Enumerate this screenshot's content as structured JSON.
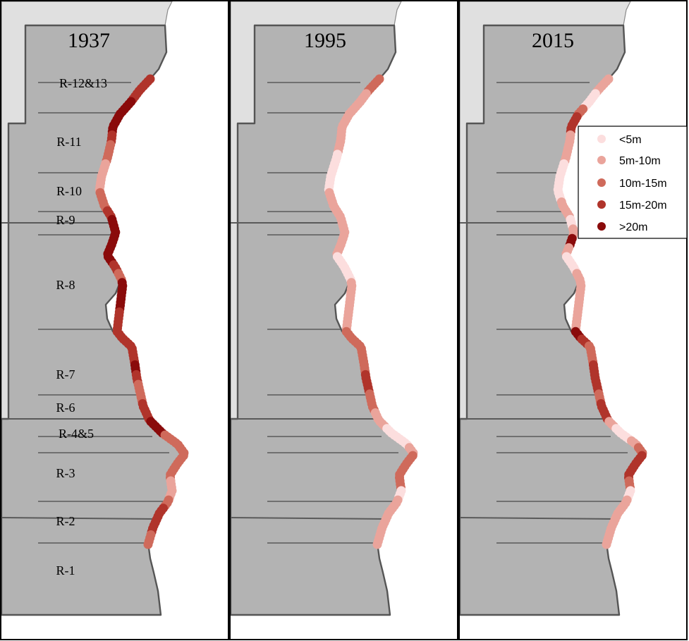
{
  "panels": [
    {
      "year": "1937",
      "profile": [
        3,
        3,
        3,
        4,
        4,
        4,
        4,
        3,
        2,
        2,
        1,
        1,
        1,
        2,
        2,
        3,
        4,
        4,
        4,
        4,
        4,
        3,
        2,
        4,
        4,
        4,
        3,
        3,
        3,
        3,
        3,
        3,
        4,
        3,
        2,
        2,
        3,
        3,
        4,
        4,
        2,
        2,
        2,
        2,
        2,
        2,
        1,
        1,
        2,
        3,
        3,
        3,
        2
      ]
    },
    {
      "year": "1995",
      "profile": [
        2,
        2,
        1,
        1,
        1,
        1,
        1,
        1,
        1,
        0,
        0,
        0,
        0,
        1,
        1,
        1,
        1,
        1,
        1,
        1,
        0,
        0,
        0,
        1,
        1,
        1,
        1,
        1,
        2,
        2,
        2,
        2,
        2,
        3,
        3,
        2,
        2,
        1,
        1,
        0,
        0,
        0,
        1,
        2,
        2,
        2,
        2,
        0,
        1,
        1,
        1,
        1,
        1
      ]
    },
    {
      "year": "2015",
      "profile": [
        1,
        1,
        0,
        0,
        2,
        3,
        3,
        1,
        1,
        1,
        0,
        0,
        0,
        0,
        1,
        1,
        0,
        1,
        4,
        1,
        0,
        0,
        1,
        1,
        1,
        1,
        1,
        1,
        4,
        3,
        2,
        2,
        3,
        3,
        3,
        2,
        3,
        3,
        1,
        0,
        0,
        1,
        2,
        3,
        3,
        3,
        2,
        0,
        1,
        1,
        1,
        1,
        1
      ]
    }
  ],
  "region_labels": [
    "R-12&13",
    "R-11",
    "R-10",
    "R-9",
    "R-8",
    "R-7",
    "R-6",
    "R-4&5",
    "R-3",
    "R-2",
    "R-1"
  ],
  "legend": {
    "items": [
      {
        "label": "<5m",
        "color": "#fcdede"
      },
      {
        "label": "5m-10m",
        "color": "#eaa49b"
      },
      {
        "label": "10m-15m",
        "color": "#cf6a5b"
      },
      {
        "label": "15m-20m",
        "color": "#b0342b"
      },
      {
        "label": ">20m",
        "color": "#8a0b0b"
      }
    ]
  }
}
